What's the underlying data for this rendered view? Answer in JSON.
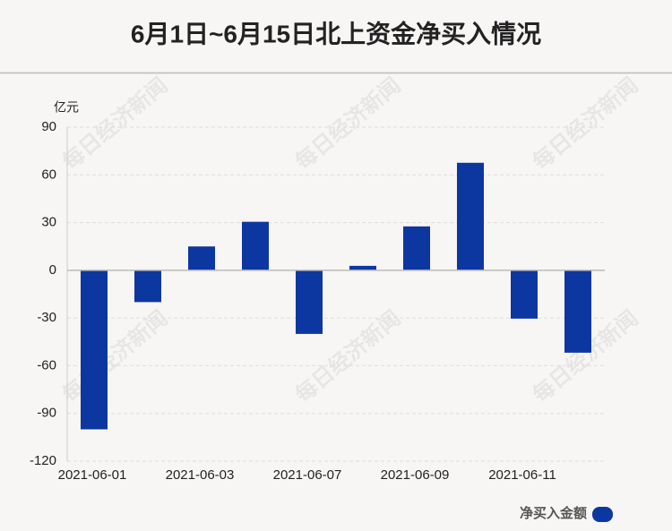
{
  "chart_data": {
    "type": "bar",
    "title": "6月1日~6月15日北上资金净买入情况",
    "y_unit": "亿元",
    "watermark": "每日经济新闻",
    "categories": [
      "2021-06-01",
      null,
      "2021-06-03",
      null,
      "2021-06-07",
      null,
      "2021-06-09",
      null,
      "2021-06-11",
      null
    ],
    "series": [
      {
        "name": "净买入金额",
        "color": "#0d37a0",
        "values": [
          -100,
          -20,
          15,
          30.5,
          -40,
          2.8,
          27.6,
          67.6,
          -30.4,
          -51.8
        ]
      }
    ],
    "ylim": [
      -120,
      90
    ],
    "yticks": [
      90,
      60,
      30,
      0,
      -30,
      -60,
      -90,
      -120
    ],
    "grid": true,
    "legend": "bottom-right"
  }
}
